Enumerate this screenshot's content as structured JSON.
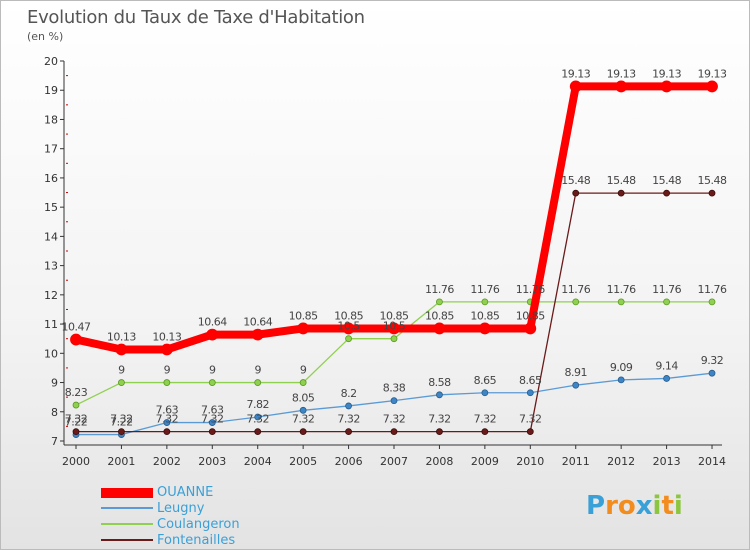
{
  "chart_data": {
    "type": "line",
    "title": "Evolution du Taux de Taxe d'Habitation",
    "unit_label": "(en %)",
    "ylim": [
      7,
      20
    ],
    "yticks": [
      7,
      8,
      9,
      10,
      11,
      12,
      13,
      14,
      15,
      16,
      17,
      18,
      19,
      20
    ],
    "categories": [
      "2000",
      "2001",
      "2002",
      "2003",
      "2004",
      "2005",
      "2006",
      "2007",
      "2008",
      "2009",
      "2010",
      "2011",
      "2012",
      "2013",
      "2014"
    ],
    "grid": false,
    "legend_position": "bottom-left",
    "series": [
      {
        "name": "OUANNE",
        "color": "#ff0000",
        "values": [
          10.47,
          10.13,
          10.13,
          10.64,
          10.64,
          10.85,
          10.85,
          10.85,
          10.85,
          10.85,
          10.85,
          19.13,
          19.13,
          19.13,
          19.13
        ]
      },
      {
        "name": "Leugny",
        "color": "#5b9bd5",
        "values": [
          7.22,
          7.22,
          7.63,
          7.63,
          7.82,
          8.05,
          8.2,
          8.38,
          8.58,
          8.65,
          8.65,
          8.91,
          9.09,
          9.14,
          9.32
        ]
      },
      {
        "name": "Coulangeron",
        "color": "#90d050",
        "values": [
          8.23,
          9,
          9,
          9,
          9,
          9,
          10.5,
          10.5,
          11.76,
          11.76,
          11.76,
          11.76,
          11.76,
          11.76,
          11.76
        ]
      },
      {
        "name": "Fontenailles",
        "color": "#6b1a1a",
        "values": [
          7.32,
          7.32,
          7.32,
          7.32,
          7.32,
          7.32,
          7.32,
          7.32,
          7.32,
          7.32,
          7.32,
          15.48,
          15.48,
          15.48,
          15.48
        ]
      }
    ]
  },
  "point_labels": {
    "OUANNE": [
      "10.47",
      "10.13",
      "10.13",
      "10.64",
      "10.64",
      "10.85",
      "10.85",
      "10.85",
      "10.85",
      "10.85",
      "10.85",
      "19.13",
      "19.13",
      "19.13",
      "19.13"
    ],
    "Leugny": [
      "7.22",
      "7.22",
      "7.63",
      "7.63",
      "7.82",
      "8.05",
      "8.2",
      "8.38",
      "8.58",
      "8.65",
      "8.65",
      "8.91",
      "9.09",
      "9.14",
      "9.32"
    ],
    "Coulangeron": [
      "8.23",
      "9",
      "9",
      "9",
      "9",
      "9",
      "10.5",
      "10.5",
      "11.76",
      "11.76",
      "11.76",
      "11.76",
      "11.76",
      "11.76",
      "11.76"
    ],
    "Fontenailles": [
      "7.32",
      "7.32",
      "7.32",
      "7.32",
      "7.32",
      "7.32",
      "7.32",
      "7.32",
      "7.32",
      "7.32",
      "7.32",
      "15.48",
      "15.48",
      "15.48",
      "15.48"
    ]
  },
  "logo": {
    "letters": [
      "P",
      "r",
      "o",
      "x",
      "i",
      "t",
      "i"
    ],
    "colors": [
      "#3aa0d8",
      "#f28c1e",
      "#f28c1e",
      "#3aa0d8",
      "#8cc63f",
      "#f28c1e",
      "#8cc63f"
    ]
  }
}
